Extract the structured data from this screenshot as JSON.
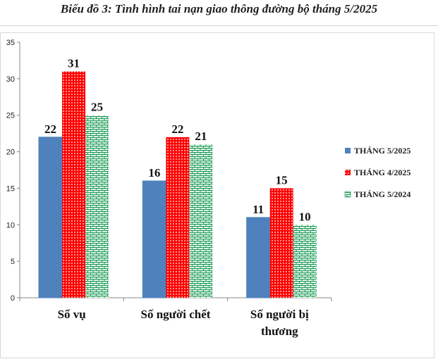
{
  "title": "Biểu đồ 3: Tình hình tai nạn giao thông đường bộ tháng 5/2025",
  "chart_data": {
    "type": "bar",
    "categories": [
      [
        "Số vụ"
      ],
      [
        "Số người chết"
      ],
      [
        "Số người bị",
        "thương"
      ]
    ],
    "series": [
      {
        "name": "THÁNG 5/2025",
        "values": [
          22,
          16,
          11
        ],
        "color": "#4f81bd",
        "pattern": "solid"
      },
      {
        "name": "THÁNG 4/2025",
        "values": [
          31,
          22,
          15
        ],
        "color": "#ff0000",
        "pattern": "dots"
      },
      {
        "name": "THÁNG 5/2024",
        "values": [
          25,
          21,
          10
        ],
        "color": "#1e9c58",
        "pattern": "bricks"
      }
    ],
    "ylim": [
      0,
      35
    ],
    "yticks": [
      0,
      5,
      10,
      15,
      20,
      25,
      30,
      35
    ],
    "grid": false,
    "legend_position": "right"
  }
}
